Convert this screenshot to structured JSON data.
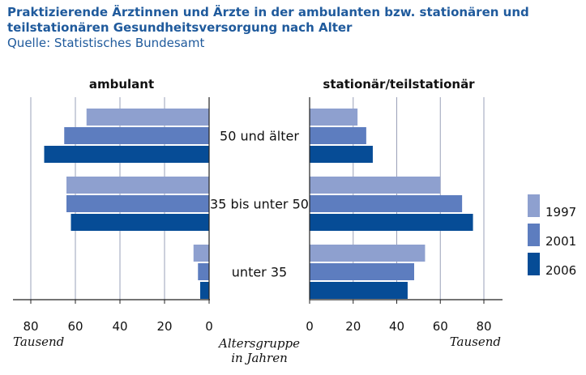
{
  "chart_data": {
    "type": "bar",
    "title": "Praktizierende Ärztinnen und Ärzte in der ambulanten bzw. stationären und teilstationären Gesundheitsversorgung nach Alter",
    "subtitle": "Quelle: Statistisches Bundesamt",
    "panels": [
      {
        "name": "ambulant",
        "xlim": [
          0,
          80
        ],
        "ticks": [
          80,
          60,
          40,
          20,
          0
        ],
        "axis_unit": "Tausend",
        "orientation": "right-to-left"
      },
      {
        "name": "stationär/teilstationär",
        "xlim": [
          0,
          80
        ],
        "ticks": [
          0,
          20,
          40,
          60,
          80
        ],
        "axis_unit": "Tausend",
        "orientation": "left-to-right"
      }
    ],
    "categories": [
      "50 und älter",
      "35 bis unter 50",
      "unter 35"
    ],
    "center_axis_label": [
      "Altersgruppe",
      "in Jahren"
    ],
    "series": [
      {
        "name": "1997",
        "color": "#8ea0cf",
        "ambulant": [
          55,
          64,
          7
        ],
        "stationaer": [
          22,
          60,
          53
        ]
      },
      {
        "name": "2001",
        "color": "#5d7dbf",
        "ambulant": [
          65,
          64,
          5
        ],
        "stationaer": [
          26,
          70,
          48
        ]
      },
      {
        "name": "2006",
        "color": "#064c96",
        "ambulant": [
          74,
          62,
          4
        ],
        "stationaer": [
          29,
          75,
          45
        ]
      }
    ],
    "legend_position": "right",
    "grid": true
  }
}
